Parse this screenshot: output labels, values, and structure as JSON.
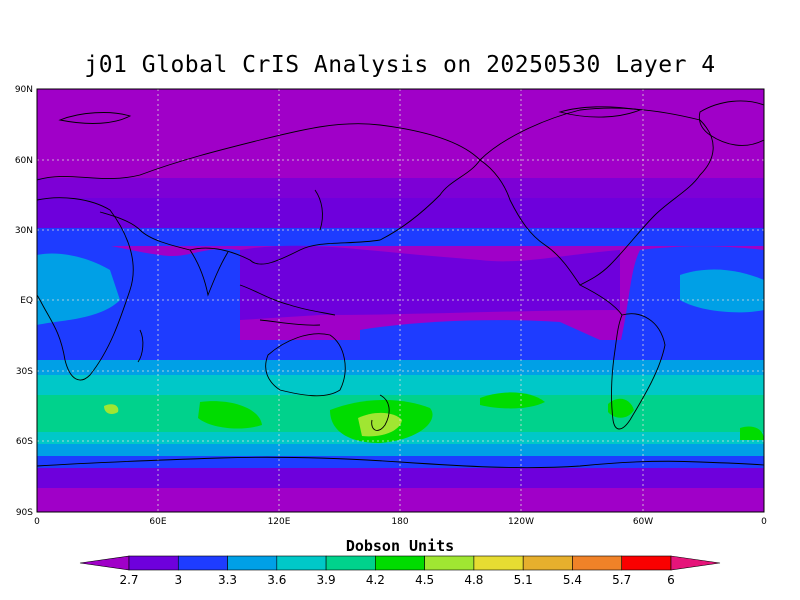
{
  "title": "j01 Global CrIS Analysis on 20250530 Layer 4",
  "colorbar": {
    "units_label": "Dobson Units",
    "tick_labels": [
      "2.7",
      "3",
      "3.3",
      "3.6",
      "3.9",
      "4.2",
      "4.5",
      "4.8",
      "5.1",
      "5.4",
      "5.7",
      "6"
    ],
    "colors": [
      "#a000c8",
      "#6e00dc",
      "#1e3cff",
      "#00a0e6",
      "#00c8c8",
      "#00d28c",
      "#00dc00",
      "#a0e632",
      "#e6dc32",
      "#e6af2d",
      "#f08228",
      "#fa0000",
      "#e6147a"
    ]
  },
  "axes": {
    "lat_labels": [
      "90N",
      "60N",
      "30N",
      "EQ",
      "30S",
      "60S",
      "90S"
    ],
    "lon_labels": [
      "0",
      "60E",
      "120E",
      "180",
      "120W",
      "60W",
      "0"
    ]
  },
  "chart_data": {
    "type": "heatmap",
    "title": "j01 Global CrIS Analysis on 20250530 Layer 4",
    "xlabel": "",
    "ylabel": "",
    "x_range": [
      0,
      360
    ],
    "y_range": [
      -90,
      90
    ],
    "colorbar_label": "Dobson Units",
    "levels": [
      2.7,
      3.0,
      3.3,
      3.6,
      3.9,
      4.2,
      4.5,
      4.8,
      5.1,
      5.4,
      5.7,
      6.0
    ],
    "grid": true
  }
}
